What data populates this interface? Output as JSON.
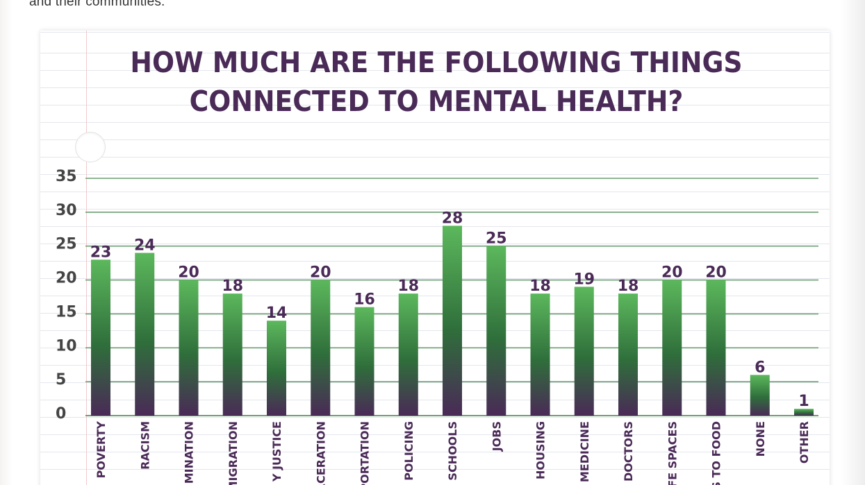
{
  "intro_text": "and their communities.",
  "chart_data": {
    "type": "bar",
    "title": "HOW MUCH ARE THE FOLLOWING THINGS CONNECTED TO MENTAL HEALTH?",
    "title_lines": [
      "HOW MUCH ARE THE FOLLOWING THINGS",
      "CONNECTED TO MENTAL HEALTH?"
    ],
    "xlabel": "",
    "ylabel": "",
    "ylim": [
      0,
      35
    ],
    "yticks": [
      0,
      5,
      10,
      15,
      20,
      25,
      30,
      35
    ],
    "grid": true,
    "categories": [
      "POVERTY",
      "RACISM",
      "DISCRIMINATION",
      "IMMIGRATION",
      "COMMUNITY JUSTICE",
      "INCARCERATION",
      "TRANSPORTATION",
      "POLICING",
      "SCHOOLS",
      "JOBS",
      "HOUSING",
      "ACCESS TO MEDICINE",
      "ACCESS TO DOCTORS",
      "SAFE SPACES",
      "ACCESS TO FOOD",
      "NONE",
      "OTHER"
    ],
    "visible_category_labels": [
      "POVERTY",
      "RACISM",
      "MINATION",
      "MIGRATION",
      "Y JUSTICE",
      "RCERATION",
      "PORTATION",
      "POLICING",
      "SCHOOLS",
      "JOBS",
      "HOUSING",
      "MEDICINE",
      "DOCTORS",
      "FE SPACES",
      "S TO FOOD",
      "NONE",
      "OTHER"
    ],
    "values": [
      23,
      24,
      20,
      18,
      14,
      20,
      16,
      18,
      28,
      25,
      18,
      19,
      18,
      20,
      20,
      6,
      1
    ],
    "colors": {
      "bar_top": "#5cb85c",
      "bar_mid": "#2f6e3b",
      "bar_bottom": "#4a2a57",
      "gridline": "#6b9e72",
      "title": "#4a2a57"
    }
  }
}
